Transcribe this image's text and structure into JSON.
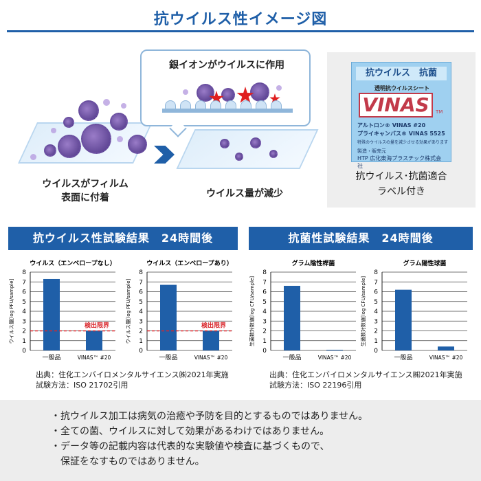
{
  "title": "抗ウイルス性イメージ図",
  "illustration": {
    "bubble_title": "銀イオンがウイルスに作用",
    "caption_left": [
      "ウイルスがフィルム",
      "表面に付着"
    ],
    "caption_right": "ウイルス量が減少"
  },
  "label": {
    "head": "抗ウイルス　抗菌",
    "sub": "透明抗ウイルスシート",
    "logo": "VINAS",
    "tm": "TM",
    "products": [
      "アルトロン® VINAS #20",
      "プライキャンバス® VINAS 5525"
    ],
    "note_small": "特殊のウイルスの量を減少させる効果があります",
    "maker_label": "製造・販売元",
    "htp": "HTP 広化東海プラスチック株式会社",
    "caption": [
      "抗ウイルス･抗菌適合",
      "ラベル付き"
    ]
  },
  "results": {
    "antivirus_head": "抗ウイルス性試験結果　24時間後",
    "antibac_head": "抗菌性試験結果　24時間後",
    "antivirus_source": [
      "出典：住化エンバイロメンタルサイエンス㈱2021年実施",
      "試験方法：ISO 21702引用"
    ],
    "antibac_source": [
      "出典：住化エンバイロメンタルサイエンス㈱2021年実施",
      "試験方法：ISO 22196引用"
    ]
  },
  "notes": [
    "・抗ウイルス加工は病気の治癒や予防を目的とするものではありません。",
    "・全ての菌、ウイルスに対して効果があるわけではありません。",
    "・データ等の記載内容は代表的な実験値や検査に基づくもので、",
    "　保証をなすものではありません。"
  ],
  "colors": {
    "accent": "#1f5fa8",
    "bar": "#1f5fa8",
    "limit": "#d9262b"
  },
  "chart_data": [
    {
      "type": "bar",
      "title": "ウイルス（エンベロープなし）",
      "ylabel": "ウイルス量[log PFU/sample]",
      "categories": [
        "一般品",
        "VINAS™ #20"
      ],
      "values": [
        7.3,
        2.0
      ],
      "ylim": [
        0,
        8
      ],
      "ticks": [
        "0",
        "1",
        "2",
        "3",
        "4",
        "5",
        "6",
        "7",
        "8"
      ],
      "limit_line": 2.0,
      "limit_label": "検出限界",
      "grid": true
    },
    {
      "type": "bar",
      "title": "ウイルス（エンベロープあり）",
      "ylabel": "ウイルス量[log PFU/sample]",
      "categories": [
        "一般品",
        "VINAS™ #20"
      ],
      "values": [
        6.7,
        2.0
      ],
      "ylim": [
        0,
        8
      ],
      "ticks": [
        "0",
        "1",
        "2",
        "3",
        "4",
        "5",
        "6",
        "7",
        "8"
      ],
      "limit_line": 2.0,
      "limit_label": "検出限界",
      "grid": true
    },
    {
      "type": "bar",
      "title": "グラム陰性桿菌",
      "ylabel": "生菌数対数値[log CFU/sample]",
      "categories": [
        "一般品",
        "VINAS™ #20"
      ],
      "values": [
        6.6,
        0.0
      ],
      "ylim": [
        0,
        8
      ],
      "ticks": [
        "0",
        "1",
        "2",
        "3",
        "4",
        "5",
        "6",
        "7",
        "8"
      ],
      "limit_line": null,
      "limit_label": "",
      "grid": true
    },
    {
      "type": "bar",
      "title": "グラム陽性球菌",
      "ylabel": "生菌数対数値[log CFU/sample]",
      "categories": [
        "一般品",
        "VINAS™ #20"
      ],
      "values": [
        6.2,
        0.4
      ],
      "ylim": [
        0,
        8
      ],
      "ticks": [
        "0",
        "1",
        "2",
        "3",
        "4",
        "5",
        "6",
        "7",
        "8"
      ],
      "limit_line": null,
      "limit_label": "",
      "grid": true
    }
  ]
}
